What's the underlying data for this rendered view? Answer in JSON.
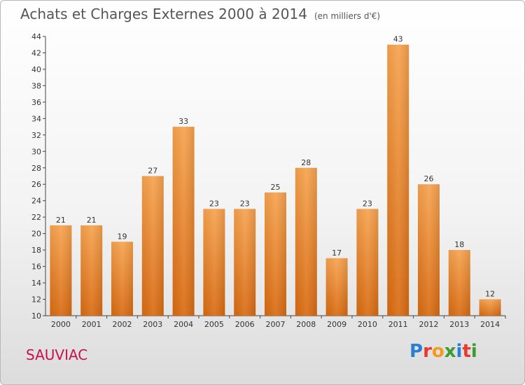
{
  "title": "Achats et Charges Externes 2000 à 2014",
  "unit_note": "(en milliers d'€)",
  "commune": "SAUVIAC",
  "logo": {
    "text": "Proxiti",
    "letter_colors": [
      "#2a7fd4",
      "#e8392a",
      "#f39b1c",
      "#3c9b33",
      "#2a7fd4",
      "#e8392a",
      "#3c9b33"
    ]
  },
  "chart_data": {
    "type": "bar",
    "categories": [
      "2000",
      "2001",
      "2002",
      "2003",
      "2004",
      "2005",
      "2006",
      "2007",
      "2008",
      "2009",
      "2010",
      "2011",
      "2012",
      "2013",
      "2014"
    ],
    "values": [
      21,
      21,
      19,
      27,
      33,
      23,
      23,
      25,
      28,
      17,
      23,
      43,
      26,
      18,
      12
    ],
    "title": "Achats et Charges Externes 2000 à 2014",
    "xlabel": "",
    "ylabel": "",
    "ylim": [
      10,
      44
    ],
    "yticks": [
      10,
      12,
      14,
      16,
      18,
      20,
      22,
      24,
      26,
      28,
      30,
      32,
      34,
      36,
      38,
      40,
      42,
      44
    ],
    "grid": false,
    "data_labels": true,
    "colors": {
      "bar_top": "#f7a34f",
      "bar_bottom": "#d96b12"
    }
  }
}
